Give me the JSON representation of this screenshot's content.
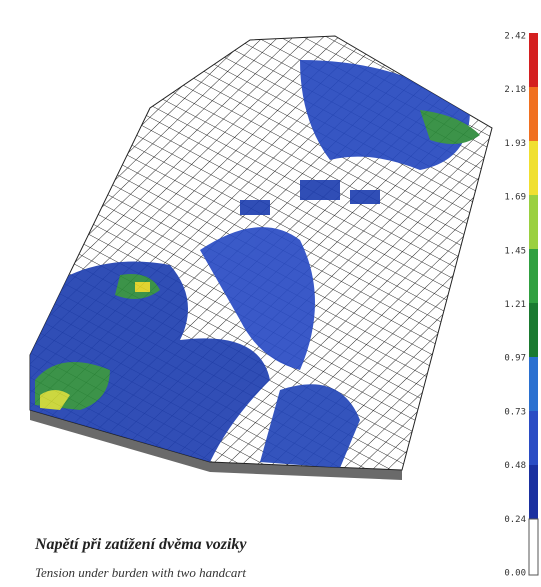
{
  "caption": {
    "title": "Napětí při zatížení dvěma voziky",
    "subtitle": "Tension under burden with two handcart"
  },
  "colorbar": {
    "labels": [
      "2.42",
      "2.18",
      "1.93",
      "1.69",
      "1.45",
      "1.21",
      "0.97",
      "0.73",
      "0.48",
      "0.24",
      "0.00"
    ]
  }
}
